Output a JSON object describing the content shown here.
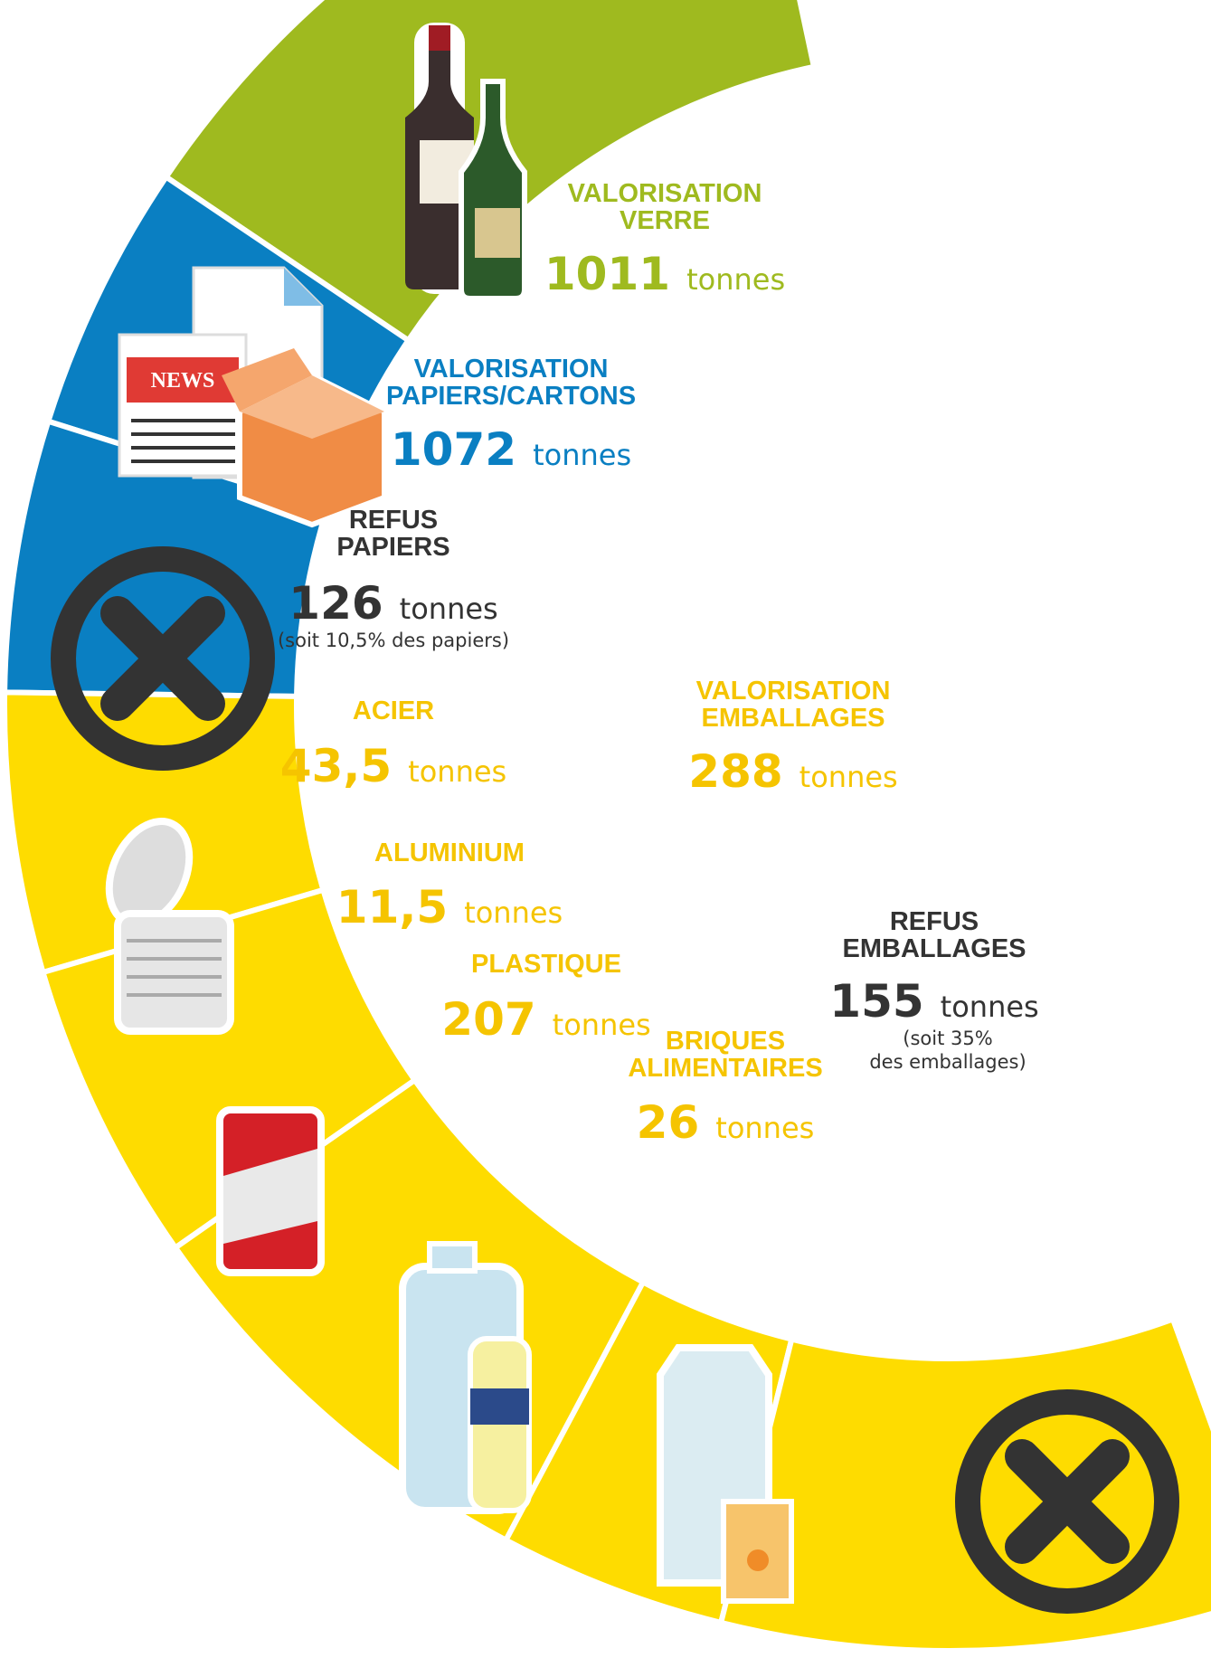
{
  "items": [
    {
      "title": [
        "VALORISATION",
        "VERRE"
      ],
      "amount": "1011",
      "unit": "tonnes"
    },
    {
      "title": [
        "VALORISATION",
        "PAPIERS/CARTONS"
      ],
      "amount": "1072",
      "unit": "tonnes"
    },
    {
      "title": [
        "REFUS",
        "PAPIERS"
      ],
      "amount": "126",
      "unit": "tonnes",
      "note": [
        "(soit 10,5% des papiers)"
      ]
    },
    {
      "title": [
        "ACIER"
      ],
      "amount": "43,5",
      "unit": "tonnes"
    },
    {
      "title": [
        "VALORISATION",
        "EMBALLAGES"
      ],
      "amount": "288",
      "unit": "tonnes"
    },
    {
      "title": [
        "ALUMINIUM"
      ],
      "amount": "11,5",
      "unit": "tonnes"
    },
    {
      "title": [
        "PLASTIQUE"
      ],
      "amount": "207",
      "unit": "tonnes"
    },
    {
      "title": [
        "BRIQUES",
        "ALIMENTAIRES"
      ],
      "amount": "26",
      "unit": "tonnes"
    },
    {
      "title": [
        "REFUS",
        "EMBALLAGES"
      ],
      "amount": "155",
      "unit": "tonnes",
      "note": [
        "(soit 35%",
        "des emballages)"
      ]
    }
  ],
  "icon_text": "NEWS"
}
